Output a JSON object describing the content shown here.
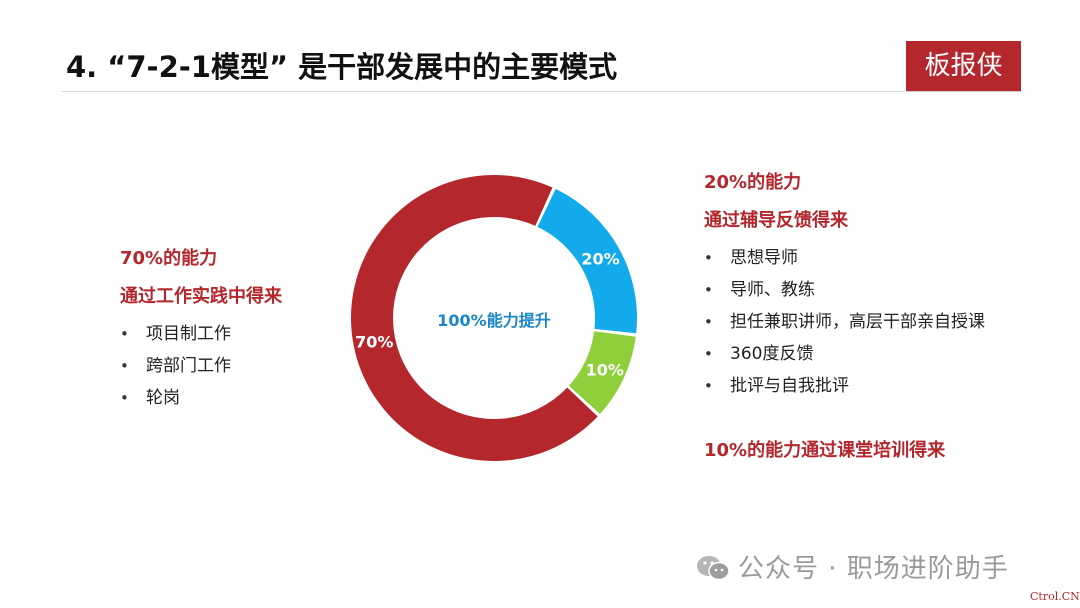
{
  "slide": {
    "title": "4. “7-2-1模型” 是干部发展中的主要模式",
    "brand": "板报侠"
  },
  "left": {
    "heading_1": "70%的能力",
    "heading_2": "通过工作实践中得来",
    "bullets": [
      "项目制工作",
      "跨部门工作",
      "轮岗"
    ]
  },
  "right": {
    "heading_1": "20%的能力",
    "heading_2": "通过辅导反馈得来",
    "bullets": [
      "思想导师",
      "导师、教练",
      "担任兼职讲师，高层干部亲自授课",
      "360度反馈",
      "批评与自我批评"
    ],
    "footer": "10%的能力通过课堂培训得来"
  },
  "chart_data": {
    "type": "pie",
    "style": "donut",
    "center_label": "100%能力提升",
    "slices": [
      {
        "label": "20%",
        "value": 20,
        "color": "#12aaea"
      },
      {
        "label": "10%",
        "value": 10,
        "color": "#8fcf3c"
      },
      {
        "label": "70%",
        "value": 70,
        "color": "#b3272d"
      }
    ],
    "center_label_color": "#1b86c8"
  },
  "watermark": {
    "text": "公众号 · 职场进阶助手",
    "site": "Ctrol.CN"
  }
}
